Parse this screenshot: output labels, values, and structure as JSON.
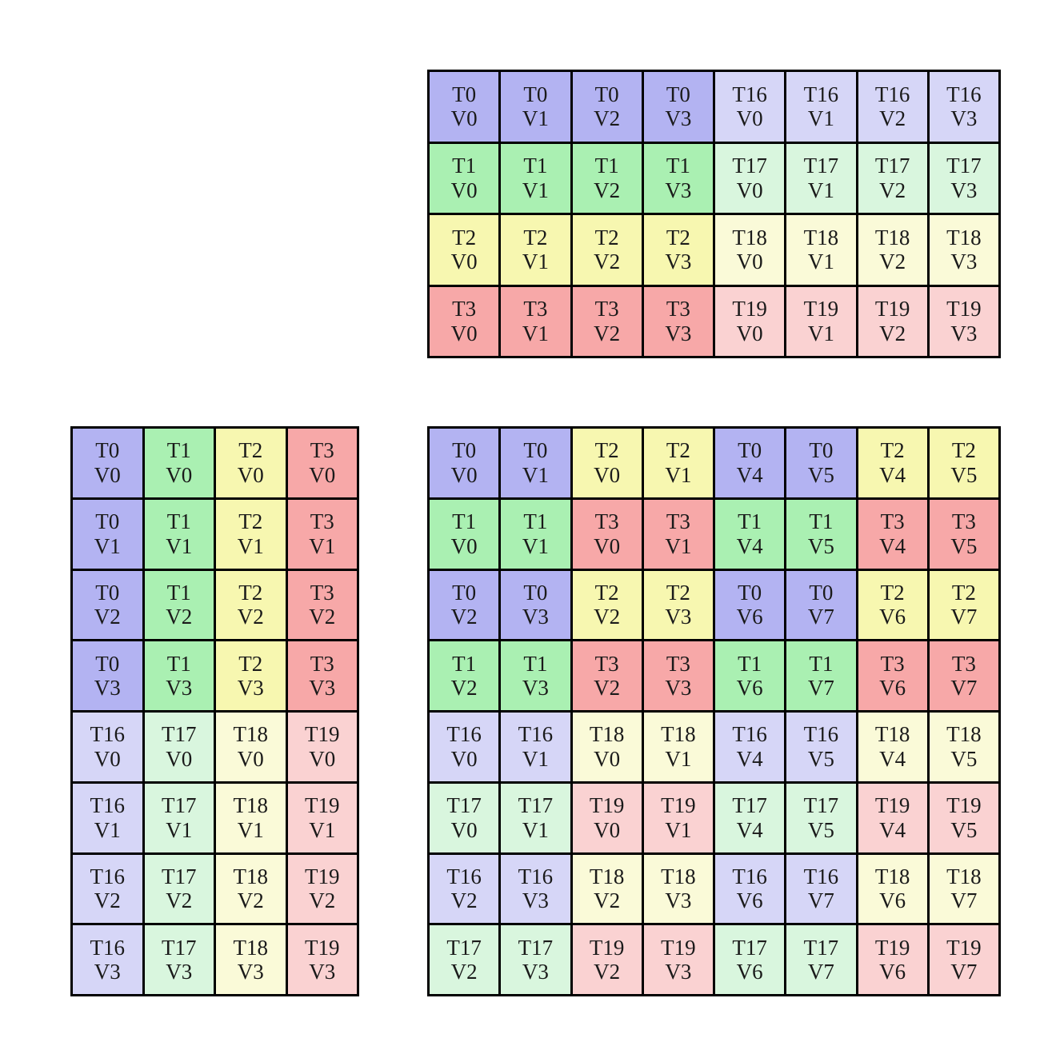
{
  "page": {
    "background": "#ffffff"
  },
  "palette": {
    "T0": "#b3b3f2",
    "T1": "#aaf0b2",
    "T2": "#f7f7b0",
    "T3": "#f7a8a8",
    "T16": "#d6d6f7",
    "T17": "#d9f6de",
    "T18": "#fafad8",
    "T19": "#fad2d2",
    "grid_line": "#000000",
    "text": "#1a1a1a"
  },
  "grids": [
    {
      "name": "grid-top",
      "rows": 4,
      "cols": 8,
      "cells": [
        [
          "T0",
          "V0"
        ],
        [
          "T0",
          "V1"
        ],
        [
          "T0",
          "V2"
        ],
        [
          "T0",
          "V3"
        ],
        [
          "T16",
          "V0"
        ],
        [
          "T16",
          "V1"
        ],
        [
          "T16",
          "V2"
        ],
        [
          "T16",
          "V3"
        ],
        [
          "T1",
          "V0"
        ],
        [
          "T1",
          "V1"
        ],
        [
          "T1",
          "V2"
        ],
        [
          "T1",
          "V3"
        ],
        [
          "T17",
          "V0"
        ],
        [
          "T17",
          "V1"
        ],
        [
          "T17",
          "V2"
        ],
        [
          "T17",
          "V3"
        ],
        [
          "T2",
          "V0"
        ],
        [
          "T2",
          "V1"
        ],
        [
          "T2",
          "V2"
        ],
        [
          "T2",
          "V3"
        ],
        [
          "T18",
          "V0"
        ],
        [
          "T18",
          "V1"
        ],
        [
          "T18",
          "V2"
        ],
        [
          "T18",
          "V3"
        ],
        [
          "T3",
          "V0"
        ],
        [
          "T3",
          "V1"
        ],
        [
          "T3",
          "V2"
        ],
        [
          "T3",
          "V3"
        ],
        [
          "T19",
          "V0"
        ],
        [
          "T19",
          "V1"
        ],
        [
          "T19",
          "V2"
        ],
        [
          "T19",
          "V3"
        ]
      ]
    },
    {
      "name": "grid-left",
      "rows": 8,
      "cols": 4,
      "cells": [
        [
          "T0",
          "V0"
        ],
        [
          "T1",
          "V0"
        ],
        [
          "T2",
          "V0"
        ],
        [
          "T3",
          "V0"
        ],
        [
          "T0",
          "V1"
        ],
        [
          "T1",
          "V1"
        ],
        [
          "T2",
          "V1"
        ],
        [
          "T3",
          "V1"
        ],
        [
          "T0",
          "V2"
        ],
        [
          "T1",
          "V2"
        ],
        [
          "T2",
          "V2"
        ],
        [
          "T3",
          "V2"
        ],
        [
          "T0",
          "V3"
        ],
        [
          "T1",
          "V3"
        ],
        [
          "T2",
          "V3"
        ],
        [
          "T3",
          "V3"
        ],
        [
          "T16",
          "V0"
        ],
        [
          "T17",
          "V0"
        ],
        [
          "T18",
          "V0"
        ],
        [
          "T19",
          "V0"
        ],
        [
          "T16",
          "V1"
        ],
        [
          "T17",
          "V1"
        ],
        [
          "T18",
          "V1"
        ],
        [
          "T19",
          "V1"
        ],
        [
          "T16",
          "V2"
        ],
        [
          "T17",
          "V2"
        ],
        [
          "T18",
          "V2"
        ],
        [
          "T19",
          "V2"
        ],
        [
          "T16",
          "V3"
        ],
        [
          "T17",
          "V3"
        ],
        [
          "T18",
          "V3"
        ],
        [
          "T19",
          "V3"
        ]
      ]
    },
    {
      "name": "grid-right",
      "rows": 8,
      "cols": 8,
      "cells": [
        [
          "T0",
          "V0"
        ],
        [
          "T0",
          "V1"
        ],
        [
          "T2",
          "V0"
        ],
        [
          "T2",
          "V1"
        ],
        [
          "T0",
          "V4"
        ],
        [
          "T0",
          "V5"
        ],
        [
          "T2",
          "V4"
        ],
        [
          "T2",
          "V5"
        ],
        [
          "T1",
          "V0"
        ],
        [
          "T1",
          "V1"
        ],
        [
          "T3",
          "V0"
        ],
        [
          "T3",
          "V1"
        ],
        [
          "T1",
          "V4"
        ],
        [
          "T1",
          "V5"
        ],
        [
          "T3",
          "V4"
        ],
        [
          "T3",
          "V5"
        ],
        [
          "T0",
          "V2"
        ],
        [
          "T0",
          "V3"
        ],
        [
          "T2",
          "V2"
        ],
        [
          "T2",
          "V3"
        ],
        [
          "T0",
          "V6"
        ],
        [
          "T0",
          "V7"
        ],
        [
          "T2",
          "V6"
        ],
        [
          "T2",
          "V7"
        ],
        [
          "T1",
          "V2"
        ],
        [
          "T1",
          "V3"
        ],
        [
          "T3",
          "V2"
        ],
        [
          "T3",
          "V3"
        ],
        [
          "T1",
          "V6"
        ],
        [
          "T1",
          "V7"
        ],
        [
          "T3",
          "V6"
        ],
        [
          "T3",
          "V7"
        ],
        [
          "T16",
          "V0"
        ],
        [
          "T16",
          "V1"
        ],
        [
          "T18",
          "V0"
        ],
        [
          "T18",
          "V1"
        ],
        [
          "T16",
          "V4"
        ],
        [
          "T16",
          "V5"
        ],
        [
          "T18",
          "V4"
        ],
        [
          "T18",
          "V5"
        ],
        [
          "T17",
          "V0"
        ],
        [
          "T17",
          "V1"
        ],
        [
          "T19",
          "V0"
        ],
        [
          "T19",
          "V1"
        ],
        [
          "T17",
          "V4"
        ],
        [
          "T17",
          "V5"
        ],
        [
          "T19",
          "V4"
        ],
        [
          "T19",
          "V5"
        ],
        [
          "T16",
          "V2"
        ],
        [
          "T16",
          "V3"
        ],
        [
          "T18",
          "V2"
        ],
        [
          "T18",
          "V3"
        ],
        [
          "T16",
          "V6"
        ],
        [
          "T16",
          "V7"
        ],
        [
          "T18",
          "V6"
        ],
        [
          "T18",
          "V7"
        ],
        [
          "T17",
          "V2"
        ],
        [
          "T17",
          "V3"
        ],
        [
          "T19",
          "V2"
        ],
        [
          "T19",
          "V3"
        ],
        [
          "T17",
          "V6"
        ],
        [
          "T17",
          "V7"
        ],
        [
          "T19",
          "V6"
        ],
        [
          "T19",
          "V7"
        ]
      ]
    }
  ]
}
